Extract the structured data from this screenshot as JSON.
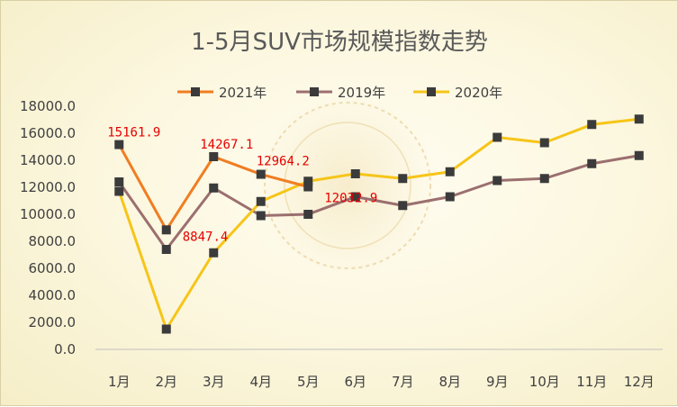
{
  "chart_data": {
    "type": "line",
    "title": "1-5月SUV市场规模指数走势",
    "categories": [
      "1月",
      "2月",
      "3月",
      "4月",
      "5月",
      "6月",
      "7月",
      "8月",
      "9月",
      "10月",
      "11月",
      "12月"
    ],
    "ylim": [
      0,
      18000
    ],
    "yticks": [
      "0.0",
      "2000.0",
      "4000.0",
      "6000.0",
      "8000.0",
      "10000.0",
      "12000.0",
      "14000.0",
      "16000.0",
      "18000.0"
    ],
    "grid": false,
    "legend_position": "top",
    "series": [
      {
        "name": "2021年",
        "color": "#f07d22",
        "values": [
          15161.9,
          8847.4,
          14267.1,
          12964.2,
          12032.9,
          null,
          null,
          null,
          null,
          null,
          null,
          null
        ],
        "labels": [
          "15161.9",
          "8847.4",
          "14267.1",
          "12964.2",
          "12032.9"
        ]
      },
      {
        "name": "2019年",
        "color": "#9b6f6f",
        "values": [
          12400,
          7400,
          11950,
          9900,
          10000,
          11300,
          10650,
          11300,
          12500,
          12650,
          13750,
          14350
        ]
      },
      {
        "name": "2020年",
        "color": "#f6c518",
        "values": [
          11700,
          1500,
          7150,
          10950,
          12450,
          13000,
          12650,
          13150,
          15700,
          15300,
          16650,
          17050
        ]
      }
    ]
  }
}
